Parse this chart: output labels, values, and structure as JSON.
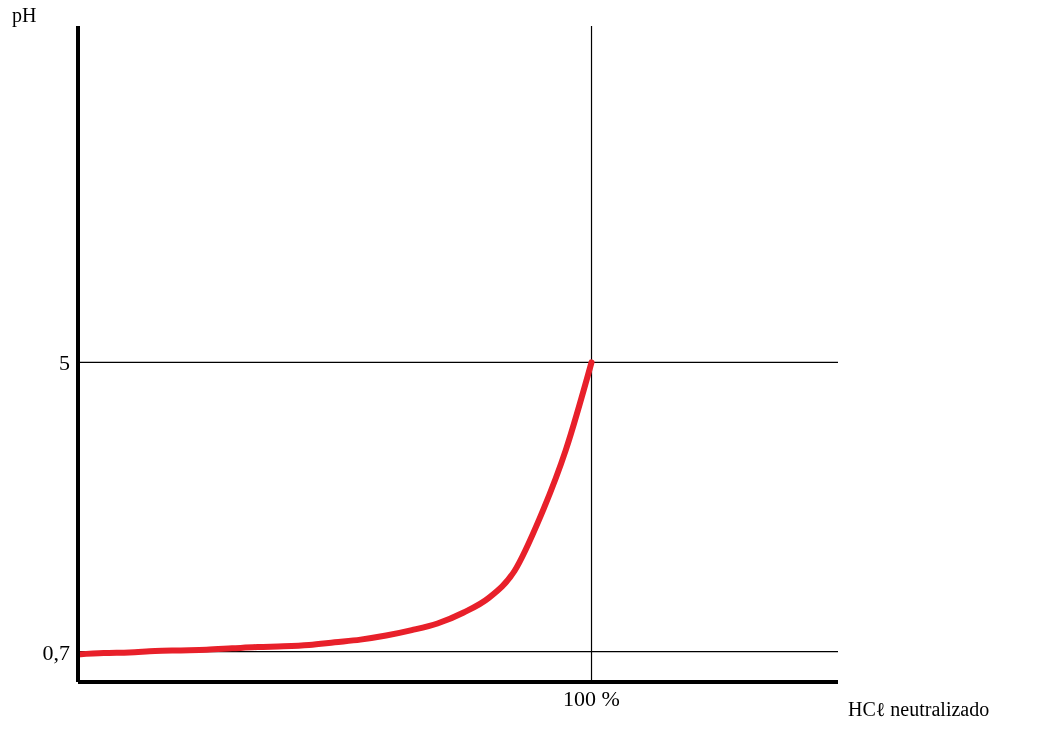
{
  "chart_data": {
    "type": "line",
    "xlabel": "HCℓ neutralizado",
    "ylabel": "pH",
    "categories": [
      null,
      null,
      null,
      null,
      null,
      null,
      null,
      null,
      null,
      null,
      null,
      null,
      null,
      null,
      null,
      null,
      null,
      null,
      null,
      null,
      "100 %",
      null,
      null,
      null,
      null,
      null,
      null,
      null,
      null,
      null
    ],
    "series": [
      {
        "color": "#e8202a",
        "values": [
          0.66,
          0.68,
          0.69,
          0.71,
          0.72,
          0.73,
          0.75,
          0.77,
          0.78,
          0.8,
          0.84,
          0.88,
          0.94,
          1.02,
          1.12,
          1.28,
          1.5,
          1.9,
          2.7,
          3.7,
          5,
          null,
          null,
          null,
          null,
          null,
          null,
          null,
          null,
          null
        ]
      }
    ],
    "ylim": [
      0.25,
      10
    ],
    "yticks": [
      {
        "value": 0.7,
        "label": "0,7"
      },
      {
        "value": 5,
        "label": "5"
      }
    ],
    "ref_lines": [
      {
        "axis": "y",
        "value": 0.7,
        "color": "#000000"
      },
      {
        "axis": "y",
        "value": 5,
        "color": "#000000"
      },
      {
        "axis": "x",
        "value": "100 %",
        "color": "#000000"
      }
    ],
    "marker": "none",
    "line_style": "solid"
  }
}
